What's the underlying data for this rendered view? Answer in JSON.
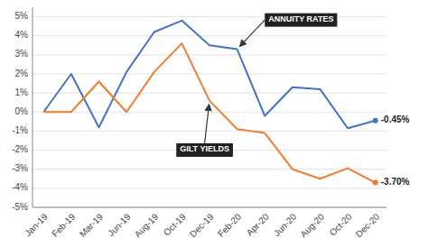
{
  "chart_data": {
    "type": "line",
    "categories": [
      "Jan-19",
      "Feb-19",
      "Mar-19",
      "Jun-19",
      "Aug-19",
      "Oct-19",
      "Dec-19",
      "Feb-20",
      "Apr-20",
      "Jun-20",
      "Aug-20",
      "Oct-20",
      "Dec-20"
    ],
    "series": [
      {
        "name": "ANNUITY RATES",
        "color": "#4472c4",
        "values": [
          0.0,
          2.0,
          -0.8,
          2.1,
          4.2,
          4.8,
          3.5,
          3.3,
          -0.2,
          1.3,
          1.2,
          -0.85,
          -0.45
        ],
        "value_labels": [
          null,
          null,
          null,
          null,
          null,
          null,
          null,
          null,
          null,
          null,
          null,
          null,
          "-0.45%"
        ]
      },
      {
        "name": "GILT YIELDS",
        "color": "#ed7d31",
        "values": [
          0.0,
          0.0,
          1.6,
          0.0,
          2.1,
          3.6,
          0.6,
          -0.9,
          -1.1,
          -3.0,
          -3.5,
          -2.95,
          -3.7
        ],
        "value_labels": [
          null,
          null,
          null,
          null,
          null,
          null,
          null,
          null,
          null,
          null,
          null,
          null,
          "-3.70%"
        ]
      }
    ],
    "ylim": [
      -5,
      5.5
    ],
    "yticks": [
      {
        "value": -5,
        "label": "-5%"
      },
      {
        "value": -4,
        "label": "-4%"
      },
      {
        "value": -3,
        "label": "-3%"
      },
      {
        "value": -2,
        "label": "-2%"
      },
      {
        "value": -1,
        "label": "-1%"
      },
      {
        "value": 0,
        "label": "0%"
      },
      {
        "value": 1,
        "label": "1%"
      },
      {
        "value": 2,
        "label": "2%"
      },
      {
        "value": 3,
        "label": "3%"
      },
      {
        "value": 4,
        "label": "4%"
      },
      {
        "value": 5,
        "label": "5%"
      }
    ],
    "grid": true
  }
}
